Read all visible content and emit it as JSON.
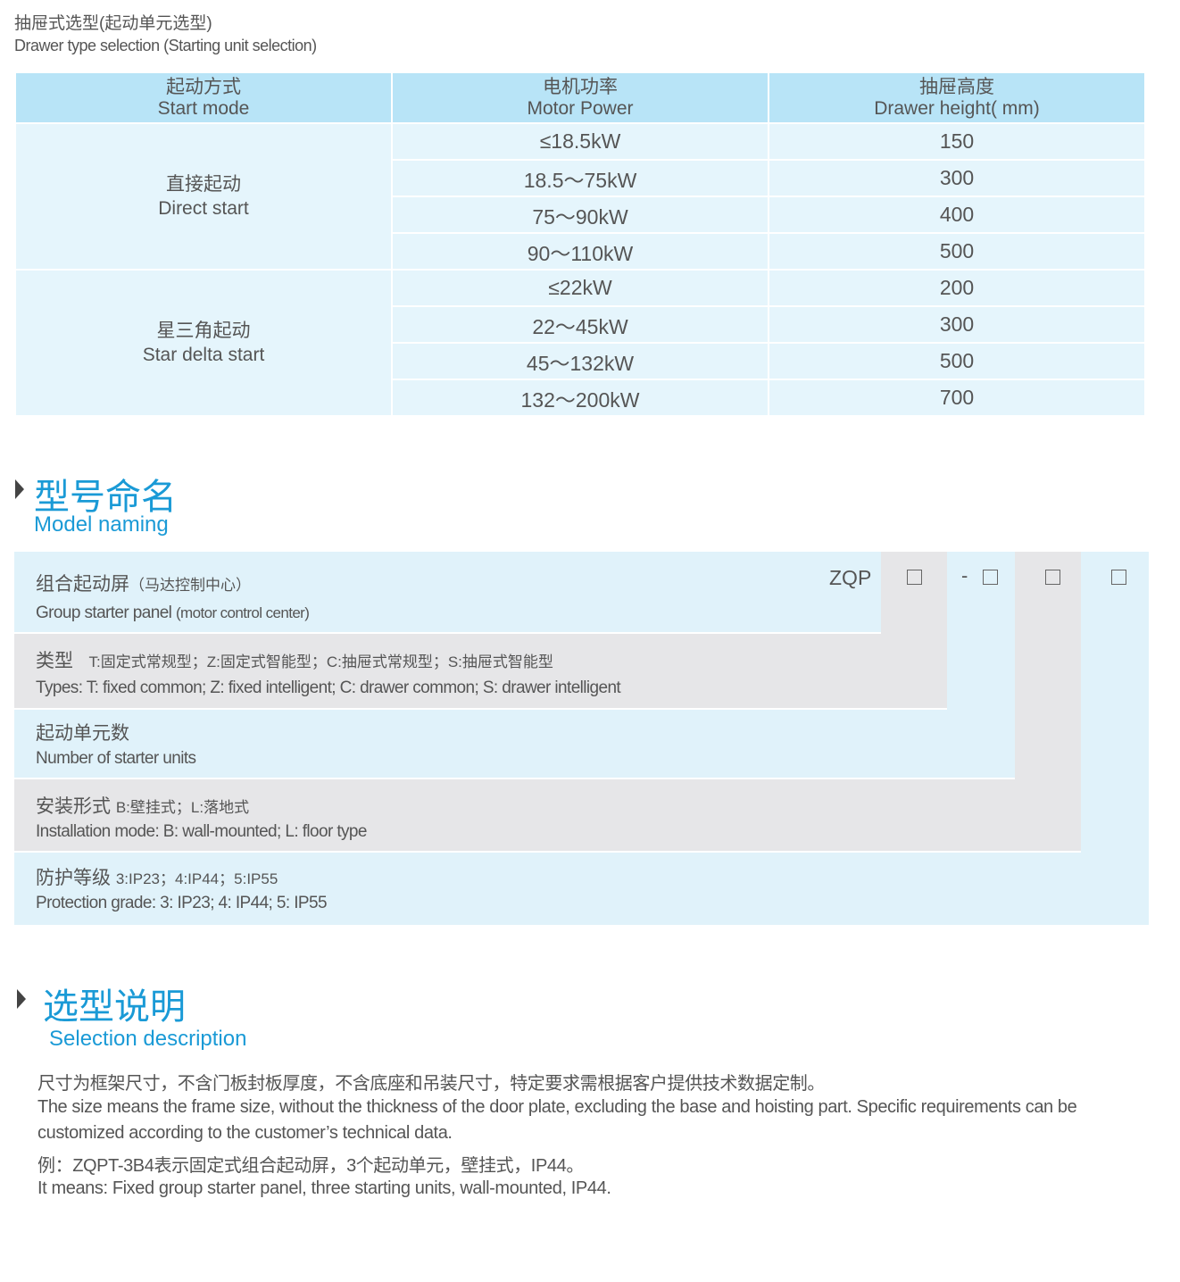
{
  "header": {
    "title_cn": "抽屉式选型(起动单元选型)",
    "title_en": "Drawer type selection (Starting unit selection)"
  },
  "table": {
    "columns": [
      {
        "cn": "起动方式",
        "en": "Start mode"
      },
      {
        "cn": "电机功率",
        "en": "Motor Power"
      },
      {
        "cn": "抽屉高度",
        "en": "Drawer height( mm)"
      }
    ],
    "groups": [
      {
        "cn": "直接起动",
        "en": "Direct start",
        "rows": [
          {
            "power": "≤18.5kW",
            "height": "150"
          },
          {
            "power": "18.5～75kW",
            "height": "300"
          },
          {
            "power": "75～90kW",
            "height": "400"
          },
          {
            "power": "90～110kW",
            "height": "500"
          }
        ]
      },
      {
        "cn": "星三角起动",
        "en": "Star delta start",
        "rows": [
          {
            "power": "≤22kW",
            "height": "200"
          },
          {
            "power": "22～45kW",
            "height": "300"
          },
          {
            "power": "45～132kW",
            "height": "500"
          },
          {
            "power": "132～200kW",
            "height": "700"
          }
        ]
      }
    ]
  },
  "model": {
    "title_cn": "型号命名",
    "title_en": "Model naming",
    "code_prefix": "ZQP",
    "dash": "-",
    "rows": [
      {
        "cn": "组合起动屏",
        "cn_note": "（马达控制中心）",
        "en": "Group starter panel",
        "en_note": "(motor control center)"
      },
      {
        "cn": "类型",
        "cn_note": "T:固定式常规型；Z:固定式智能型；C:抽屉式常规型；S:抽屉式智能型",
        "en": "Types: T: fixed common; Z: fixed intelligent; C: drawer common; S: drawer intelligent"
      },
      {
        "cn": "起动单元数",
        "en": "Number  of  starter units"
      },
      {
        "cn": "安装形式",
        "cn_note": "B:壁挂式；L:落地式",
        "en": "Installation mode: B: wall-mounted; L: floor type"
      },
      {
        "cn": "防护等级",
        "cn_note": "3:IP23；4:IP44；5:IP55",
        "en": "Protection grade:  3: IP23; 4: IP44; 5: IP55"
      }
    ],
    "colors": {
      "blue": "#e0f2fa",
      "gray": "#e6e6e8",
      "accent": "#1a9ad6"
    }
  },
  "selection": {
    "title_cn": "选型说明",
    "title_en": "Selection description",
    "lines": [
      "尺寸为框架尺寸，不含门板封板厚度，不含底座和吊装尺寸，特定要求需根据客户提供技术数据定制。",
      "The size means the frame size, without the thickness of the door plate, excluding the base and hoisting part. Specific requirements can be",
      "customized according to the customer’s technical data.",
      "例：ZQPT-3B4表示固定式组合起动屏，3个起动单元，壁挂式，IP44。",
      "It means: Fixed group starter panel, three starting units, wall-mounted, IP44."
    ]
  }
}
